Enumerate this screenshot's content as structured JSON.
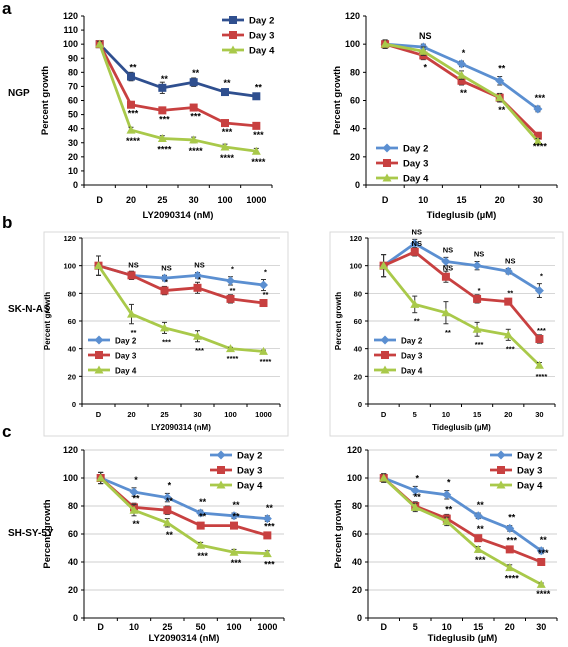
{
  "panels": [
    {
      "letter": "a",
      "row_label": "NGP"
    },
    {
      "letter": "b",
      "row_label": "SK-N-AS"
    },
    {
      "letter": "c",
      "row_label": "SH-SY-5Y"
    }
  ],
  "colors": {
    "day2_a_left": "#2f4f8f",
    "day2": "#5b8fd1",
    "day3": "#c84040",
    "day4": "#a9c94a",
    "axis": "#000000",
    "grid": "#bfbfbf"
  },
  "chart_data": [
    {
      "id": "a-left",
      "type": "line",
      "xlabel": "LY2090314 (nM)",
      "ylabel": "Percent growth",
      "categories": [
        "D",
        "20",
        "25",
        "30",
        "100",
        "1000"
      ],
      "ylim": [
        0,
        120
      ],
      "yticks": [
        0,
        10,
        20,
        30,
        40,
        50,
        60,
        70,
        80,
        90,
        100,
        110,
        120
      ],
      "grid": false,
      "legend": "top-right",
      "series": [
        {
          "name": "Day 2",
          "values": [
            100,
            77,
            69,
            73,
            66,
            63
          ],
          "errors": [
            2,
            3,
            4,
            3,
            2,
            2
          ]
        },
        {
          "name": "Day 3",
          "values": [
            100,
            57,
            53,
            55,
            44,
            42
          ],
          "errors": [
            2,
            2,
            2,
            2,
            2,
            2
          ]
        },
        {
          "name": "Day 4",
          "values": [
            100,
            39,
            33,
            32,
            27,
            24
          ],
          "errors": [
            2,
            2,
            2,
            2,
            2,
            2
          ]
        }
      ],
      "annotations": [
        {
          "series": 0,
          "labels": [
            "",
            "**",
            "**",
            "**",
            "**",
            "**"
          ]
        },
        {
          "series": 1,
          "labels": [
            "",
            "***",
            "***",
            "***",
            "***",
            "***"
          ]
        },
        {
          "series": 2,
          "labels": [
            "",
            "****",
            "****",
            "****",
            "****",
            "****"
          ]
        }
      ]
    },
    {
      "id": "a-right",
      "type": "line",
      "xlabel": "Tideglusib (µM)",
      "ylabel": "Percent growth",
      "categories": [
        "D",
        "10",
        "15",
        "20",
        "30"
      ],
      "ylim": [
        0,
        120
      ],
      "yticks": [
        0,
        20,
        40,
        60,
        80,
        100,
        120
      ],
      "grid": false,
      "legend": "bottom-left",
      "series": [
        {
          "name": "Day 2",
          "values": [
            100,
            98,
            86,
            74,
            54
          ],
          "errors": [
            3,
            2,
            2,
            3,
            2
          ]
        },
        {
          "name": "Day 3",
          "values": [
            100,
            92,
            74,
            62,
            35
          ],
          "errors": [
            3,
            3,
            3,
            3,
            2
          ]
        },
        {
          "name": "Day 4",
          "values": [
            100,
            95,
            78,
            62,
            31
          ],
          "errors": [
            3,
            3,
            3,
            3,
            2
          ]
        }
      ],
      "annotations": [
        {
          "series": 0,
          "labels": [
            "",
            "NS",
            "*",
            "**",
            "***"
          ]
        },
        {
          "series": 1,
          "labels": [
            "",
            "*",
            "**",
            "**",
            "****"
          ]
        }
      ]
    },
    {
      "id": "b-left",
      "type": "line",
      "xlabel": "LY2090314 (nM)",
      "ylabel": "Percent growth",
      "categories": [
        "D",
        "20",
        "25",
        "30",
        "100",
        "1000"
      ],
      "ylim": [
        0,
        120
      ],
      "yticks": [
        0,
        20,
        40,
        60,
        80,
        100,
        120
      ],
      "grid": true,
      "legend": "bottom-left",
      "series": [
        {
          "name": "Day 2",
          "values": [
            100,
            93,
            91,
            93,
            89,
            86
          ],
          "errors": [
            7,
            2,
            2,
            2,
            3,
            4
          ]
        },
        {
          "name": "Day 3",
          "values": [
            100,
            93,
            82,
            84,
            76,
            73
          ],
          "errors": [
            7,
            3,
            3,
            4,
            3,
            2
          ]
        },
        {
          "name": "Day 4",
          "values": [
            100,
            65,
            55,
            49,
            40,
            38
          ],
          "errors": [
            7,
            7,
            4,
            4,
            1,
            1
          ]
        }
      ],
      "annotations": [
        {
          "series": 0,
          "labels": [
            "",
            "NS",
            "NS",
            "NS",
            "*",
            "*"
          ]
        },
        {
          "series": 1,
          "labels": [
            "",
            "",
            "*",
            "*",
            "**",
            "**"
          ]
        },
        {
          "series": 2,
          "labels": [
            "",
            "**",
            "***",
            "***",
            "****",
            "****"
          ]
        }
      ]
    },
    {
      "id": "b-right",
      "type": "line",
      "xlabel": "Tideglusib (µM)",
      "ylabel": "Percent growth",
      "categories": [
        "D",
        "5",
        "10",
        "15",
        "20",
        "30"
      ],
      "ylim": [
        0,
        120
      ],
      "yticks": [
        0,
        20,
        40,
        60,
        80,
        100,
        120
      ],
      "grid": true,
      "legend": "bottom-left",
      "series": [
        {
          "name": "Day 2",
          "values": [
            100,
            116,
            103,
            100,
            96,
            82
          ],
          "errors": [
            8,
            3,
            3,
            3,
            2,
            5
          ]
        },
        {
          "name": "Day 3",
          "values": [
            100,
            110,
            92,
            76,
            74,
            47
          ],
          "errors": [
            8,
            3,
            4,
            3,
            2,
            3
          ]
        },
        {
          "name": "Day 4",
          "values": [
            100,
            72,
            66,
            54,
            50,
            28
          ],
          "errors": [
            8,
            6,
            8,
            5,
            4,
            2
          ]
        }
      ],
      "annotations": [
        {
          "series": 0,
          "labels": [
            "",
            "NS",
            "NS",
            "NS",
            "NS",
            "*"
          ]
        },
        {
          "series": 1,
          "labels": [
            "",
            "NS",
            "NS",
            "*",
            "**",
            "***"
          ]
        },
        {
          "series": 2,
          "labels": [
            "",
            "**",
            "**",
            "***",
            "***",
            "****"
          ]
        }
      ]
    },
    {
      "id": "c-left",
      "type": "line",
      "xlabel": "LY2090314 (nM)",
      "ylabel": "Percent growth",
      "categories": [
        "D",
        "10",
        "25",
        "50",
        "100",
        "1000"
      ],
      "ylim": [
        0,
        120
      ],
      "yticks": [
        0,
        20,
        40,
        60,
        80,
        100,
        120
      ],
      "grid": true,
      "legend": "top-right",
      "series": [
        {
          "name": "Day 2",
          "values": [
            100,
            90,
            86,
            75,
            73,
            71
          ],
          "errors": [
            4,
            3,
            3,
            2,
            2,
            2
          ]
        },
        {
          "name": "Day 3",
          "values": [
            100,
            79,
            77,
            66,
            66,
            59
          ],
          "errors": [
            4,
            3,
            3,
            2,
            2,
            2
          ]
        },
        {
          "name": "Day 4",
          "values": [
            100,
            77,
            68,
            52,
            47,
            46
          ],
          "errors": [
            4,
            4,
            3,
            2,
            2,
            2
          ]
        }
      ],
      "annotations": [
        {
          "series": 0,
          "labels": [
            "",
            "*",
            "*",
            "**",
            "**",
            "**"
          ]
        },
        {
          "series": 1,
          "labels": [
            "",
            "**",
            "**",
            "**",
            "**",
            "***"
          ]
        },
        {
          "series": 2,
          "labels": [
            "",
            "**",
            "**",
            "***",
            "***",
            "***"
          ]
        }
      ]
    },
    {
      "id": "c-right",
      "type": "line",
      "xlabel": "Tideglusib (µM)",
      "ylabel": "Percent growth",
      "categories": [
        "D",
        "5",
        "10",
        "15",
        "20",
        "30"
      ],
      "ylim": [
        0,
        120
      ],
      "yticks": [
        0,
        20,
        40,
        60,
        80,
        100,
        120
      ],
      "grid": true,
      "legend": "top-right",
      "series": [
        {
          "name": "Day 2",
          "values": [
            100,
            91,
            88,
            73,
            64,
            48
          ],
          "errors": [
            3,
            3,
            3,
            2,
            2,
            2
          ]
        },
        {
          "name": "Day 3",
          "values": [
            100,
            80,
            71,
            57,
            49,
            40
          ],
          "errors": [
            3,
            3,
            3,
            2,
            2,
            2
          ]
        },
        {
          "name": "Day 4",
          "values": [
            100,
            79,
            69,
            49,
            36,
            24
          ],
          "errors": [
            3,
            3,
            3,
            2,
            2,
            1
          ]
        }
      ],
      "annotations": [
        {
          "series": 0,
          "labels": [
            "",
            "*",
            "*",
            "**",
            "**",
            "**"
          ]
        },
        {
          "series": 1,
          "labels": [
            "",
            "**",
            "**",
            "**",
            "***",
            "***"
          ]
        },
        {
          "series": 2,
          "labels": [
            "",
            "",
            "",
            "***",
            "****",
            "****"
          ]
        }
      ]
    }
  ]
}
